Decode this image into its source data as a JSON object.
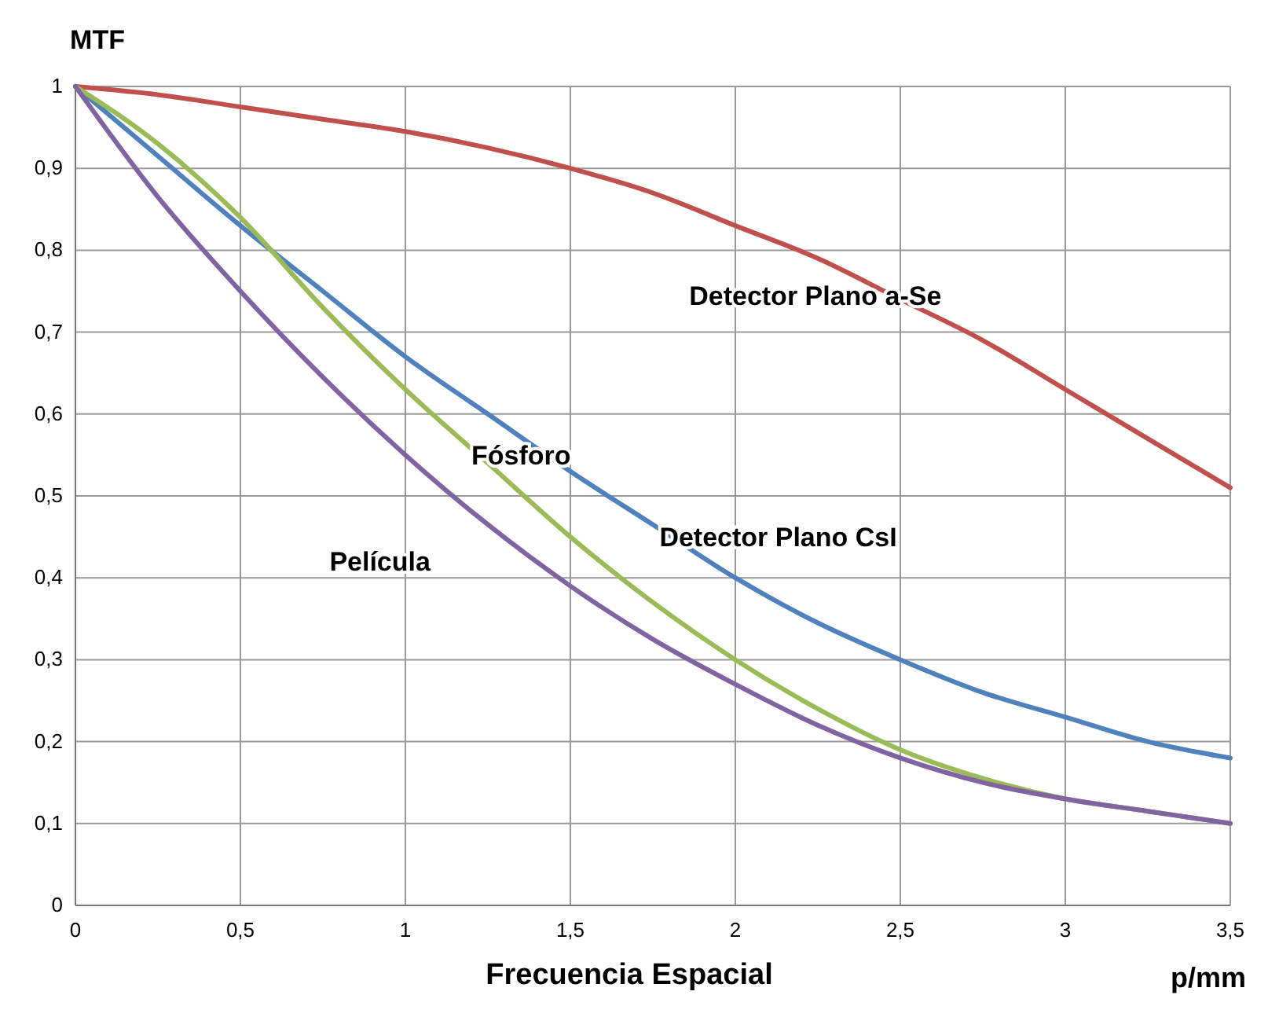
{
  "chart_data": {
    "type": "line",
    "ylabel": "MTF",
    "xlabel": "Frecuencia Espacial",
    "annotations": [
      "p/mm"
    ],
    "x": [
      0,
      0.25,
      0.5,
      0.75,
      1,
      1.25,
      1.5,
      1.75,
      2,
      2.25,
      2.5,
      2.75,
      3,
      3.25,
      3.5
    ],
    "series": [
      {
        "name": "Detector Plano a-Se",
        "color": "#c0504d",
        "values": [
          1,
          0.99,
          0.975,
          0.96,
          0.945,
          0.925,
          0.9,
          0.87,
          0.83,
          0.79,
          0.74,
          0.69,
          0.63,
          0.57,
          0.51
        ]
      },
      {
        "name": "Detector Plano CsI",
        "color": "#4f81bd",
        "values": [
          1,
          0.915,
          0.83,
          0.75,
          0.67,
          0.6,
          0.53,
          0.465,
          0.4,
          0.345,
          0.3,
          0.26,
          0.23,
          0.2,
          0.18
        ]
      },
      {
        "name": "Fósforo",
        "color": "#9bbb59",
        "values": [
          1,
          0.93,
          0.84,
          0.73,
          0.63,
          0.54,
          0.45,
          0.37,
          0.3,
          0.24,
          0.19,
          0.155,
          0.13,
          0.115,
          0.1
        ]
      },
      {
        "name": "Película",
        "color": "#8064a2",
        "values": [
          1,
          0.865,
          0.75,
          0.645,
          0.55,
          0.465,
          0.39,
          0.325,
          0.27,
          0.22,
          0.18,
          0.15,
          0.13,
          0.115,
          0.1
        ]
      }
    ],
    "xlim": [
      0,
      3.5
    ],
    "xticks": [
      0,
      {
        "value": 0.5,
        "label": "0,5"
      },
      1,
      {
        "value": 1.5,
        "label": "1,5"
      },
      2,
      {
        "value": 2.5,
        "label": "2,5"
      },
      3,
      {
        "value": 3.5,
        "label": "3,5"
      }
    ],
    "ylim": [
      0,
      1
    ],
    "yticks": [
      0,
      {
        "value": 0.1,
        "label": "0,1"
      },
      {
        "value": 0.2,
        "label": "0,2"
      },
      {
        "value": 0.3,
        "label": "0,3"
      },
      {
        "value": 0.4,
        "label": "0,4"
      },
      {
        "value": 0.5,
        "label": "0,5"
      },
      {
        "value": 0.6,
        "label": "0,6"
      },
      {
        "value": 0.7,
        "label": "0,7"
      },
      {
        "value": 0.8,
        "label": "0,8"
      },
      {
        "value": 0.9,
        "label": "0,9"
      },
      1
    ],
    "grid": true,
    "legend": false,
    "marker": "none",
    "line_style": "solid"
  }
}
